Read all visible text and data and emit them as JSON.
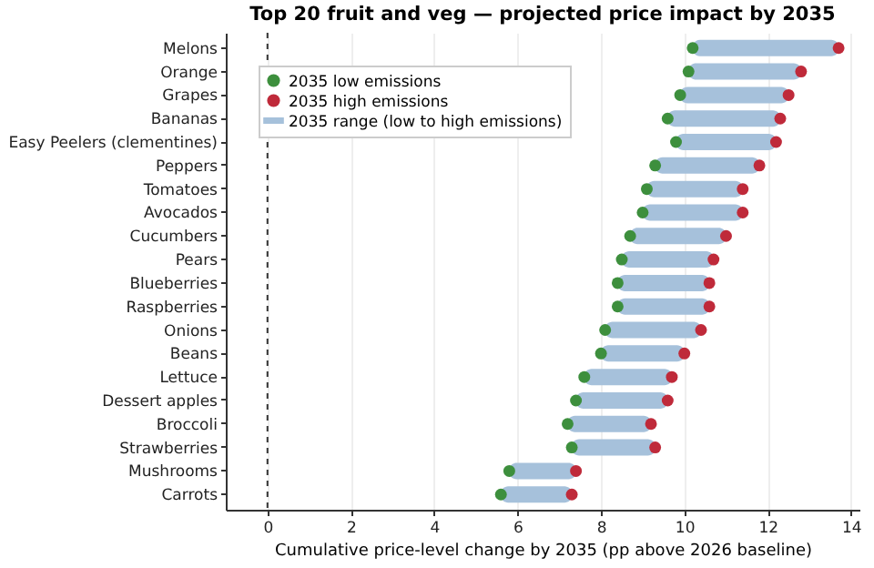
{
  "chart_data": {
    "type": "scatter",
    "title": "Top 20 fruit and veg — projected price impact by 2035",
    "xlabel": "Cumulative price-level change by 2035 (pp above 2026 baseline)",
    "orientation": "horizontal",
    "categories": [
      "Melons",
      "Orange",
      "Grapes",
      "Bananas",
      "Easy Peelers (clementines)",
      "Peppers",
      "Tomatoes",
      "Avocados",
      "Cucumbers",
      "Pears",
      "Blueberries",
      "Raspberries",
      "Onions",
      "Beans",
      "Lettuce",
      "Dessert apples",
      "Broccoli",
      "Strawberries",
      "Mushrooms",
      "Carrots"
    ],
    "series": [
      {
        "name": "2035 low emissions",
        "color": "#3d8f3d",
        "values": [
          10.2,
          10.1,
          9.9,
          9.6,
          9.8,
          9.3,
          9.1,
          9.0,
          8.7,
          8.5,
          8.4,
          8.4,
          8.1,
          8.0,
          7.6,
          7.4,
          7.2,
          7.3,
          5.8,
          5.6
        ]
      },
      {
        "name": "2035 high emissions",
        "color": "#bf2a3a",
        "values": [
          13.7,
          12.8,
          12.5,
          12.3,
          12.2,
          11.8,
          11.4,
          11.4,
          11.0,
          10.7,
          10.6,
          10.6,
          10.4,
          10.0,
          9.7,
          9.6,
          9.2,
          9.3,
          7.4,
          7.3
        ]
      },
      {
        "name": "2035 range (low to high emissions)",
        "type": "bar",
        "color": "#a6c1db",
        "base": [
          10.2,
          10.1,
          9.9,
          9.6,
          9.8,
          9.3,
          9.1,
          9.0,
          8.7,
          8.5,
          8.4,
          8.4,
          8.1,
          8.0,
          7.6,
          7.4,
          7.2,
          7.3,
          5.8,
          5.6
        ],
        "values": [
          3.5,
          2.7,
          2.6,
          2.7,
          2.4,
          2.5,
          2.3,
          2.4,
          2.3,
          2.2,
          2.2,
          2.2,
          2.3,
          2.0,
          2.1,
          2.2,
          2.0,
          2.0,
          1.6,
          1.7
        ]
      }
    ],
    "xlim": [
      -1,
      14.2
    ],
    "xticks": [
      0,
      2,
      4,
      6,
      8,
      10,
      12,
      14
    ],
    "grid": "x",
    "legend": "top left",
    "marker": "circle",
    "ref_lines": [
      {
        "axis": "x",
        "value": 0,
        "color": "#333333",
        "line_style": "dashed"
      }
    ]
  }
}
